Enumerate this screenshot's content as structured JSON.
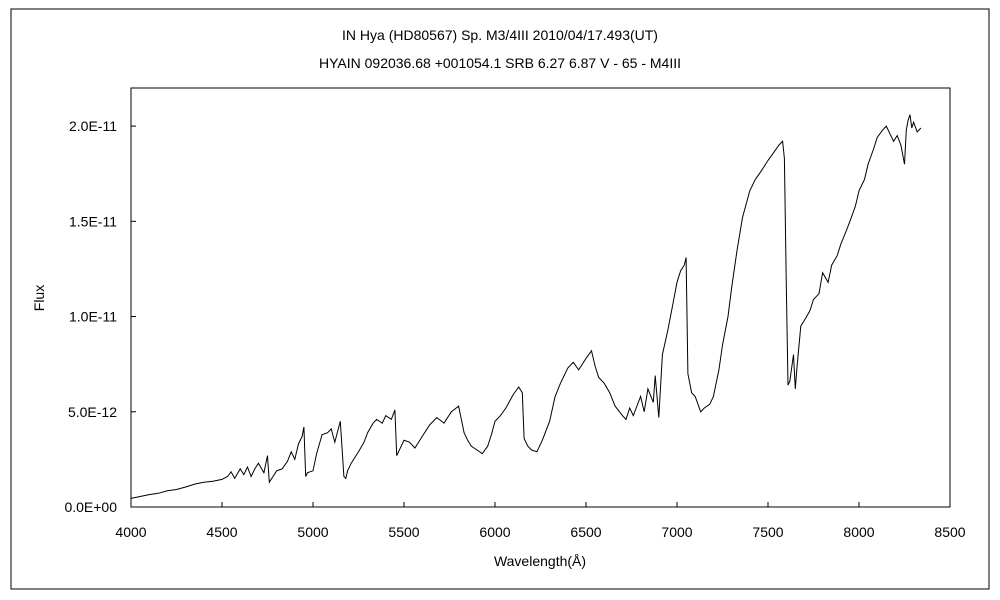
{
  "chart_data": {
    "type": "line",
    "title": "IN Hya (HD80567)     Sp. M3/4III     2010/04/17.493(UT)",
    "subtitle": "HYAIN 092036.68 +001054.1 SRB 6.27 6.87 V - 65 - M4III",
    "xlabel": "Wavelength(Å)",
    "ylabel": "Flux",
    "xlim": [
      4000,
      8500
    ],
    "ylim": [
      0,
      2.2e-11
    ],
    "x_ticks": [
      4000,
      4500,
      5000,
      5500,
      6000,
      6500,
      7000,
      7500,
      8000,
      8500
    ],
    "x_tick_labels": [
      "4000",
      "4500",
      "5000",
      "5500",
      "6000",
      "6500",
      "7000",
      "7500",
      "8000",
      "8500"
    ],
    "y_ticks": [
      0,
      5e-12,
      1e-11,
      1.5e-11,
      2e-11
    ],
    "y_tick_labels": [
      "0.0E+00",
      "5.0E-12",
      "1.0E-11",
      "1.5E-11",
      "2.0E-11"
    ],
    "grid": false,
    "series": [
      {
        "x": [
          4000,
          4050,
          4100,
          4150,
          4200,
          4250,
          4300,
          4350,
          4400,
          4450,
          4500,
          4530,
          4550,
          4570,
          4600,
          4620,
          4640,
          4660,
          4680,
          4700,
          4730,
          4750,
          4760,
          4780,
          4800,
          4830,
          4860,
          4880,
          4900,
          4920,
          4940,
          4950,
          4960,
          4970,
          5000,
          5020,
          5050,
          5080,
          5100,
          5120,
          5150,
          5170,
          5180,
          5190,
          5210,
          5250,
          5280,
          5300,
          5330,
          5350,
          5380,
          5400,
          5430,
          5450,
          5460,
          5470,
          5500,
          5530,
          5560,
          5600,
          5640,
          5680,
          5720,
          5760,
          5800,
          5830,
          5850,
          5870,
          5900,
          5930,
          5960,
          5980,
          6000,
          6030,
          6060,
          6100,
          6130,
          6150,
          6160,
          6180,
          6200,
          6230,
          6260,
          6300,
          6330,
          6360,
          6400,
          6430,
          6460,
          6500,
          6530,
          6550,
          6570,
          6600,
          6630,
          6660,
          6700,
          6720,
          6740,
          6760,
          6800,
          6820,
          6840,
          6870,
          6880,
          6900,
          6920,
          6950,
          6980,
          7000,
          7020,
          7040,
          7050,
          7060,
          7080,
          7100,
          7130,
          7150,
          7180,
          7200,
          7230,
          7250,
          7280,
          7300,
          7330,
          7360,
          7400,
          7430,
          7460,
          7500,
          7530,
          7560,
          7580,
          7590,
          7600,
          7610,
          7620,
          7640,
          7650,
          7660,
          7680,
          7700,
          7730,
          7750,
          7780,
          7800,
          7830,
          7850,
          7880,
          7900,
          7930,
          7950,
          7980,
          8000,
          8030,
          8050,
          8080,
          8100,
          8130,
          8150,
          8170,
          8190,
          8210,
          8230,
          8250,
          8260,
          8270,
          8280,
          8290,
          8300,
          8320,
          8340
        ],
        "y": [
          4.5e-13,
          5.5e-13,
          6.5e-13,
          7.2e-13,
          8.5e-13,
          9.2e-13,
          1.05e-12,
          1.2e-12,
          1.3e-12,
          1.35e-12,
          1.45e-12,
          1.6e-12,
          1.85e-12,
          1.5e-12,
          2e-12,
          1.7e-12,
          2.1e-12,
          1.6e-12,
          2e-12,
          2.3e-12,
          1.8e-12,
          2.7e-12,
          1.3e-12,
          1.6e-12,
          1.9e-12,
          2e-12,
          2.4e-12,
          2.9e-12,
          2.5e-12,
          3.3e-12,
          3.7e-12,
          4.2e-12,
          1.6e-12,
          1.8e-12,
          1.9e-12,
          2.8e-12,
          3.8e-12,
          3.9e-12,
          4.1e-12,
          3.4e-12,
          4.5e-12,
          1.6e-12,
          1.5e-12,
          1.9e-12,
          2.3e-12,
          2.9e-12,
          3.4e-12,
          3.9e-12,
          4.4e-12,
          4.6e-12,
          4.4e-12,
          4.8e-12,
          4.6e-12,
          5.1e-12,
          2.7e-12,
          2.9e-12,
          3.5e-12,
          3.4e-12,
          3.1e-12,
          3.7e-12,
          4.3e-12,
          4.7e-12,
          4.4e-12,
          5e-12,
          5.3e-12,
          3.9e-12,
          3.5e-12,
          3.2e-12,
          3e-12,
          2.8e-12,
          3.2e-12,
          3.8e-12,
          4.5e-12,
          4.8e-12,
          5.2e-12,
          5.9e-12,
          6.3e-12,
          6e-12,
          3.6e-12,
          3.2e-12,
          3e-12,
          2.9e-12,
          3.5e-12,
          4.5e-12,
          5.8e-12,
          6.5e-12,
          7.3e-12,
          7.6e-12,
          7.2e-12,
          7.8e-12,
          8.2e-12,
          7.4e-12,
          6.8e-12,
          6.5e-12,
          6e-12,
          5.3e-12,
          4.8e-12,
          4.6e-12,
          5.2e-12,
          4.8e-12,
          5.8e-12,
          5e-12,
          6.2e-12,
          5.5e-12,
          6.9e-12,
          4.7e-12,
          8e-12,
          9.3e-12,
          1.08e-11,
          1.18e-11,
          1.24e-11,
          1.27e-11,
          1.31e-11,
          7e-12,
          6e-12,
          5.8e-12,
          5e-12,
          5.2e-12,
          5.4e-12,
          5.8e-12,
          7.2e-12,
          8.5e-12,
          1e-11,
          1.15e-11,
          1.35e-11,
          1.52e-11,
          1.66e-11,
          1.72e-11,
          1.76e-11,
          1.82e-11,
          1.86e-11,
          1.9e-11,
          1.92e-11,
          1.83e-11,
          1.2e-11,
          6.4e-12,
          6.6e-12,
          8e-12,
          6.2e-12,
          7.4e-12,
          9.5e-12,
          9.8e-12,
          1.03e-11,
          1.09e-11,
          1.12e-11,
          1.23e-11,
          1.18e-11,
          1.27e-11,
          1.32e-11,
          1.38e-11,
          1.45e-11,
          1.5e-11,
          1.58e-11,
          1.66e-11,
          1.72e-11,
          1.8e-11,
          1.88e-11,
          1.94e-11,
          1.98e-11,
          2e-11,
          1.96e-11,
          1.92e-11,
          1.95e-11,
          1.9e-11,
          1.8e-11,
          1.98e-11,
          2.03e-11,
          2.06e-11,
          1.99e-11,
          2.02e-11,
          1.97e-11,
          1.99e-11
        ]
      }
    ]
  }
}
